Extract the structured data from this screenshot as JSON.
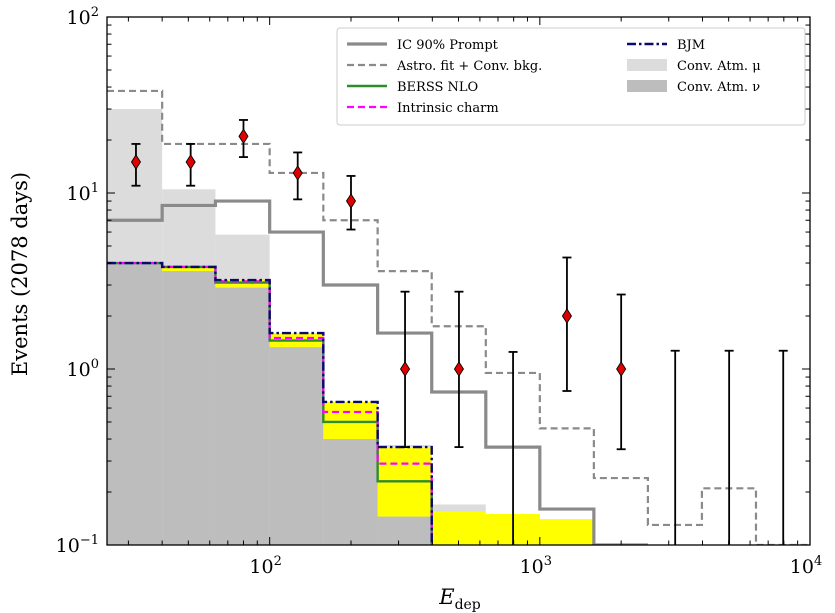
{
  "chart_data": {
    "type": "step-histogram",
    "xlabel": "E",
    "xlabel_sub": "dep",
    "ylabel": "Events (2078 days)",
    "xscale": "log",
    "yscale": "log",
    "xlim": [
      25,
      10000
    ],
    "ylim": [
      0.1,
      100
    ],
    "x_ticks": [
      {
        "base": "10",
        "exp": "2",
        "value": 100
      },
      {
        "base": "10",
        "exp": "3",
        "value": 1000
      },
      {
        "base": "10",
        "exp": "4",
        "value": 10000
      }
    ],
    "y_ticks": [
      {
        "base": "10",
        "exp": "−1",
        "value": 0.1
      },
      {
        "base": "10",
        "exp": "0",
        "value": 1
      },
      {
        "base": "10",
        "exp": "1",
        "value": 10
      },
      {
        "base": "10",
        "exp": "2",
        "value": 100
      }
    ],
    "bin_edges": [
      25,
      40,
      63,
      100,
      158,
      251,
      398,
      631,
      1000,
      1585,
      2512,
      3981,
      6310,
      10000
    ],
    "fills": [
      {
        "name": "Conv. Atm. μ",
        "color": "#dcdcdc",
        "values": [
          30,
          10.5,
          5.8,
          1.6,
          0.65,
          0.37,
          0.17,
          0.15,
          0.14,
          null,
          null,
          null,
          null
        ]
      },
      {
        "name": "Conv. Atm. ν",
        "color": "#bdbdbd",
        "values": [
          4.0,
          3.8,
          3.0,
          1.4,
          0.5,
          0.23,
          null,
          null,
          null,
          null,
          null,
          null,
          null
        ]
      }
    ],
    "band": {
      "color": "#ffff00",
      "upper": [
        4.0,
        3.8,
        3.2,
        1.6,
        0.65,
        0.36,
        0.155,
        0.15,
        0.14,
        null,
        null,
        null,
        null
      ],
      "lower": [
        4.0,
        3.6,
        2.9,
        1.33,
        0.4,
        0.145,
        0.1,
        0.1,
        0.1,
        null,
        null,
        null,
        null
      ]
    },
    "series": [
      {
        "name": "IC 90% Prompt",
        "style": "solid-thick",
        "color": "#8a8a8a",
        "values": [
          7.0,
          8.5,
          9.0,
          6.0,
          3.0,
          1.6,
          0.74,
          0.36,
          0.16,
          0.1,
          null,
          null,
          null
        ]
      },
      {
        "name": "Astro. fit + Conv. bkg.",
        "style": "dashed",
        "color": "#8a8a8a",
        "values": [
          38,
          19,
          19,
          13,
          7.0,
          3.6,
          1.75,
          0.95,
          0.46,
          0.24,
          0.13,
          0.21,
          0.1
        ]
      },
      {
        "name": "BERSS NLO",
        "style": "solid",
        "color": "#2e8b2e",
        "values": [
          4.0,
          3.8,
          3.1,
          1.45,
          0.5,
          0.23,
          null,
          null,
          null,
          null,
          null,
          null,
          null
        ]
      },
      {
        "name": "Intrinsic charm",
        "style": "dashed",
        "color": "#ff00ff",
        "values": [
          4.0,
          3.8,
          3.15,
          1.5,
          0.57,
          0.29,
          null,
          null,
          null,
          null,
          null,
          null,
          null
        ]
      },
      {
        "name": "BJM",
        "style": "dashdot",
        "color": "#0a0a6e",
        "values": [
          4.0,
          3.8,
          3.2,
          1.6,
          0.65,
          0.36,
          null,
          null,
          null,
          null,
          null,
          null,
          null
        ]
      }
    ],
    "data_points": [
      {
        "x": 32,
        "y": 15,
        "ylo": 11,
        "yhi": 19,
        "marker": "diamond"
      },
      {
        "x": 51,
        "y": 15,
        "ylo": 11,
        "yhi": 19,
        "marker": "diamond"
      },
      {
        "x": 80,
        "y": 21,
        "ylo": 16,
        "yhi": 26,
        "marker": "diamond"
      },
      {
        "x": 127,
        "y": 13,
        "ylo": 9.2,
        "yhi": 17,
        "marker": "diamond"
      },
      {
        "x": 200,
        "y": 9.0,
        "ylo": 6.2,
        "yhi": 12.5,
        "marker": "diamond"
      },
      {
        "x": 317,
        "y": 1.0,
        "ylo": 0.36,
        "yhi": 2.75,
        "marker": "diamond"
      },
      {
        "x": 502,
        "y": 1.0,
        "ylo": 0.36,
        "yhi": 2.75,
        "marker": "diamond"
      },
      {
        "x": 796,
        "y": null,
        "ylo": 0.1,
        "yhi": 1.25,
        "marker": "none"
      },
      {
        "x": 1260,
        "y": 2.0,
        "ylo": 0.75,
        "yhi": 4.3,
        "marker": "diamond"
      },
      {
        "x": 2000,
        "y": 1.0,
        "ylo": 0.35,
        "yhi": 2.65,
        "marker": "diamond"
      },
      {
        "x": 3170,
        "y": null,
        "ylo": 0.1,
        "yhi": 1.27,
        "marker": "none"
      },
      {
        "x": 5020,
        "y": null,
        "ylo": 0.1,
        "yhi": 1.27,
        "marker": "none"
      },
      {
        "x": 7960,
        "y": null,
        "ylo": 0.1,
        "yhi": 1.27,
        "marker": "none"
      }
    ],
    "data_color": "#e00000",
    "legend": {
      "placement": "top-right",
      "items": [
        {
          "label": "IC 90% Prompt",
          "kind": "solid-thick",
          "color": "#8a8a8a"
        },
        {
          "label": "Astro. fit + Conv. bkg.",
          "kind": "dashed",
          "color": "#8a8a8a"
        },
        {
          "label": "BERSS NLO",
          "kind": "solid",
          "color": "#2e8b2e"
        },
        {
          "label": "Intrinsic charm",
          "kind": "dashed",
          "color": "#ff00ff"
        },
        {
          "label": "BJM",
          "kind": "dashdot",
          "color": "#0a0a6e"
        },
        {
          "label": "Conv. Atm. μ",
          "kind": "patch",
          "color": "#dcdcdc"
        },
        {
          "label": "Conv. Atm. ν",
          "kind": "patch",
          "color": "#bdbdbd"
        }
      ]
    }
  }
}
